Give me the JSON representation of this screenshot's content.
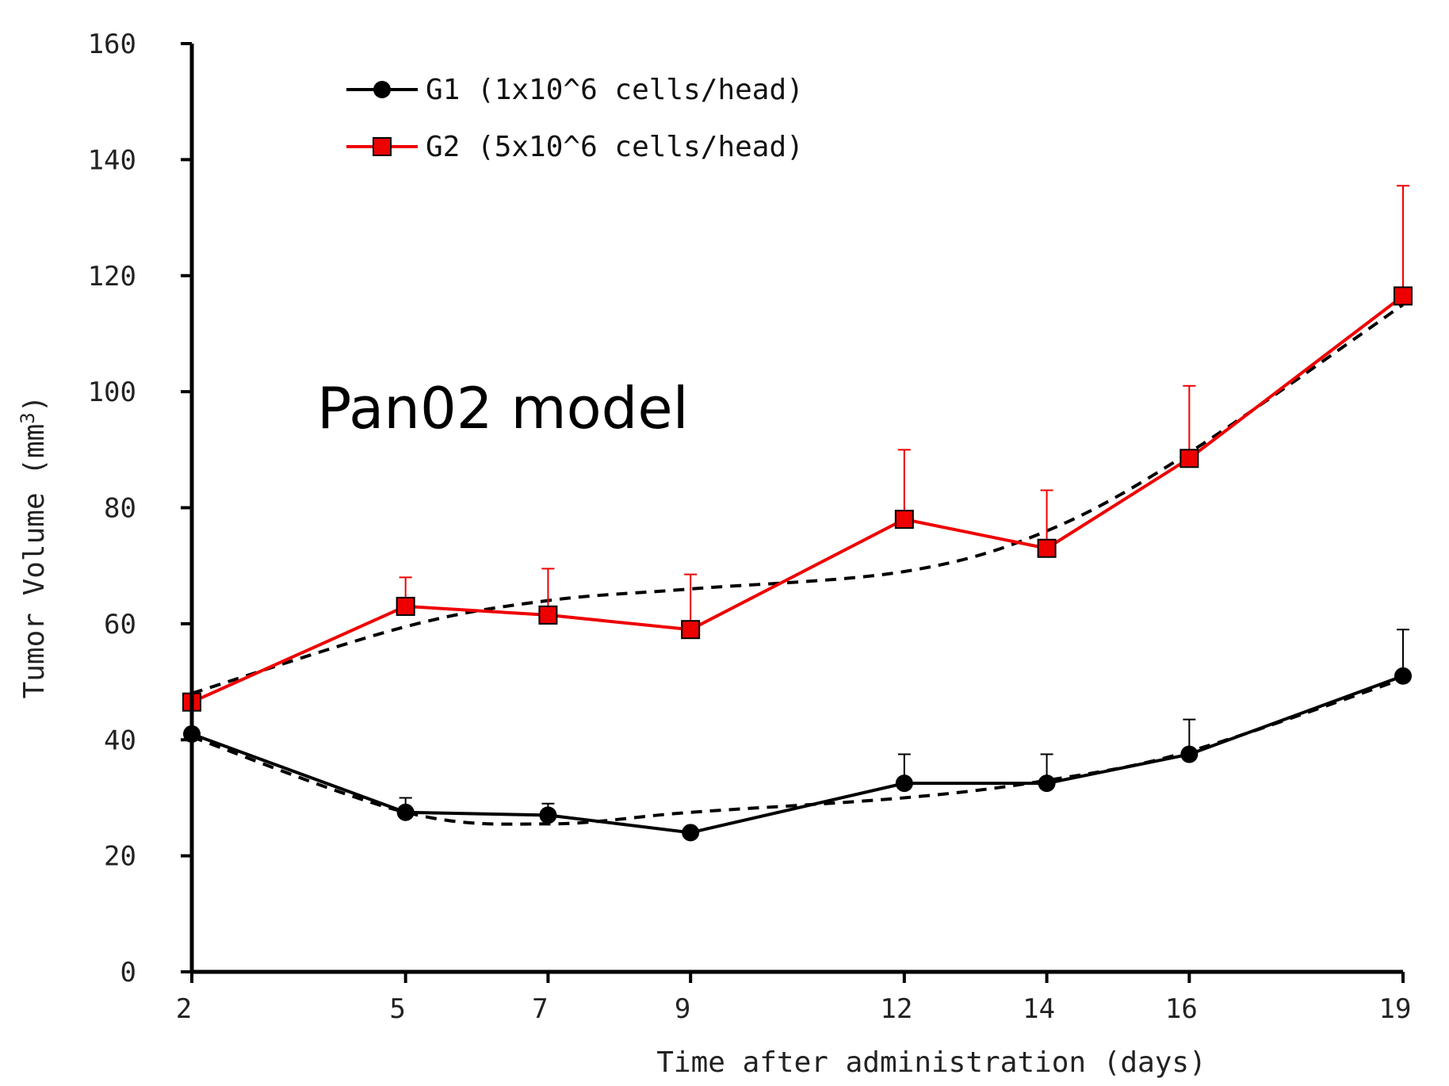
{
  "chart_data": {
    "type": "line",
    "annotation": "Pan02 model",
    "xlabel": "Time after administration (days)",
    "ylabel": "Tumor Volume (mm",
    "ylabel_sup": "3",
    "ylabel_close": ")",
    "ylim": [
      0,
      160
    ],
    "y_ticks": [
      0,
      20,
      40,
      60,
      80,
      100,
      120,
      140,
      160
    ],
    "categories": [
      "2",
      "5",
      "7",
      "9",
      "12",
      "14",
      "16",
      "19"
    ],
    "legend_position": "top-center",
    "grid": false,
    "series": [
      {
        "name": "G1 (1x10^6 cells/head)",
        "color": "#000000",
        "marker": "circle",
        "values": [
          41,
          27.5,
          27,
          24,
          32.5,
          32.5,
          37.5,
          51
        ],
        "error": [
          0,
          2.5,
          2,
          0,
          5,
          5,
          6,
          8
        ],
        "trend": [
          40.5,
          27.5,
          25.5,
          27.5,
          30,
          33,
          38,
          50.5
        ]
      },
      {
        "name": "G2 (5x10^6 cells/head)",
        "color": "#ee0000",
        "marker": "square",
        "values": [
          46.5,
          63,
          61.5,
          59,
          78,
          73,
          88.5,
          116.5
        ],
        "error": [
          0,
          5,
          8,
          9.5,
          12,
          10,
          12.5,
          19
        ],
        "trend": [
          48,
          59.5,
          64,
          66,
          69,
          76,
          89.5,
          115
        ]
      }
    ]
  }
}
